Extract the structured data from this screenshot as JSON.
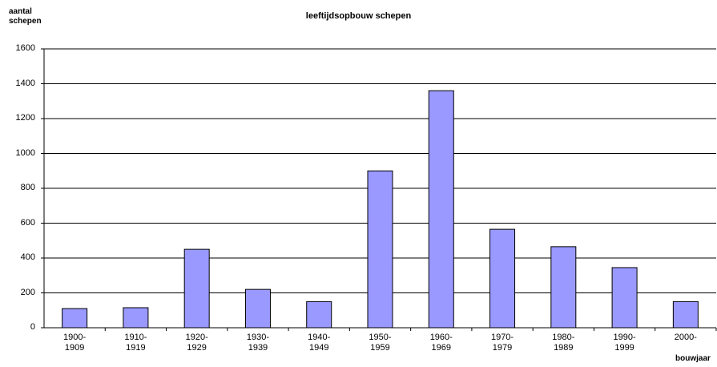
{
  "chart_data": {
    "type": "bar",
    "title": "leeftijdsopbouw schepen",
    "y_label": "aantal\nschepen",
    "x_label": "bouwjaar",
    "categories": [
      "1900-\n1909",
      "1910-\n1919",
      "1920-\n1929",
      "1930-\n1939",
      "1940-\n1949",
      "1950-\n1959",
      "1960-\n1969",
      "1970-\n1979",
      "1980-\n1989",
      "1990-\n1999",
      "2000-"
    ],
    "values": [
      110,
      115,
      450,
      220,
      150,
      900,
      1360,
      565,
      465,
      345,
      150
    ],
    "color": "#9999ff",
    "ylim": [
      0,
      1600
    ],
    "yticks": [
      0,
      200,
      400,
      600,
      800,
      1000,
      1200,
      1400,
      1600
    ],
    "grid": true
  }
}
